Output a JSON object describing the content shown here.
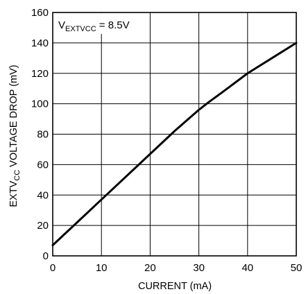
{
  "chart_data": {
    "type": "line",
    "title": "",
    "xlabel": "CURRENT (mA)",
    "ylabel": {
      "main": "EXTV",
      "sub": "CC",
      "rest": " VOLTAGE DROP (mV)"
    },
    "annotation": {
      "main": "V",
      "sub": "EXTVCC",
      "rest": " = 8.5V"
    },
    "xlim": [
      0,
      50
    ],
    "ylim": [
      0,
      160
    ],
    "xticks": [
      0,
      10,
      20,
      30,
      40,
      50
    ],
    "yticks": [
      0,
      20,
      40,
      60,
      80,
      100,
      120,
      140,
      160
    ],
    "grid": true,
    "series": [
      {
        "x": [
          0,
          5,
          10,
          15,
          20,
          25,
          30,
          32,
          35,
          40,
          45,
          50
        ],
        "y": [
          7,
          22,
          37,
          52,
          67,
          82,
          96,
          101,
          108,
          120,
          130,
          140
        ]
      }
    ],
    "colors": {
      "line": "#000000",
      "grid": "#000000",
      "frame": "#000000"
    }
  }
}
